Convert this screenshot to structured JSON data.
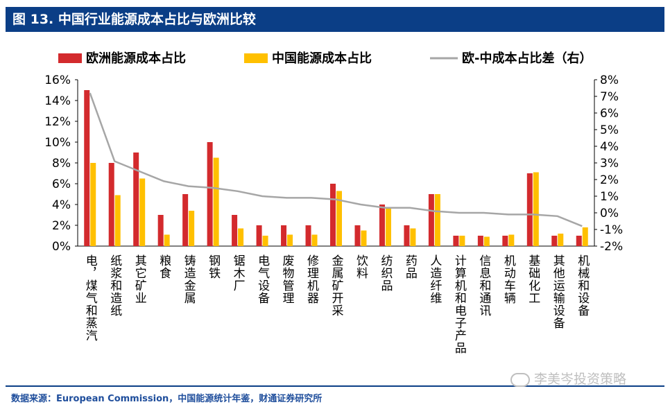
{
  "header": {
    "title": "图 13. 中国行业能源成本占比与欧洲比较"
  },
  "footer": {
    "source": "数据来源：European Commission，中国能源统计年鉴，财通证券研究所"
  },
  "watermark": {
    "text": "李美岑投资策略",
    "icon": "wechat-icon"
  },
  "colors": {
    "eu": "#d32a2d",
    "cn": "#ffc000",
    "diff": "#a6a6a6",
    "brand": "#0b3e86"
  },
  "chart_data": {
    "type": "bar",
    "title": "图 13. 中国行业能源成本占比与欧洲比较",
    "categories": [
      "电，煤气和蒸汽",
      "纸浆和造纸",
      "其它矿业",
      "粮食",
      "铸造金属",
      "钢铁",
      "锯木厂",
      "电气设备",
      "废物管理",
      "修理机器",
      "金属矿开采",
      "饮料",
      "纺织品",
      "药品",
      "人造纤维",
      "计算机和电子产品",
      "信息和通讯",
      "机动车辆",
      "基础化工",
      "其他运输设备",
      "机械和设备"
    ],
    "series": [
      {
        "name": "欧洲能源成本占比",
        "axis": "left",
        "kind": "bar",
        "values": [
          15,
          8,
          9,
          3,
          5,
          10,
          3,
          2,
          2,
          2,
          6,
          2,
          4,
          2,
          5,
          1,
          1,
          1,
          7,
          1,
          1
        ]
      },
      {
        "name": "中国能源成本占比",
        "axis": "left",
        "kind": "bar",
        "values": [
          8,
          4.9,
          6.5,
          1.1,
          3.4,
          8.5,
          1.7,
          1.0,
          1.1,
          1.1,
          5.3,
          1.5,
          3.6,
          1.7,
          5.0,
          1.0,
          0.9,
          1.1,
          7.1,
          1.2,
          1.8
        ]
      },
      {
        "name": "欧-中成本占比差（右）",
        "axis": "right",
        "kind": "line",
        "values": [
          7.2,
          3.1,
          2.5,
          1.9,
          1.6,
          1.5,
          1.3,
          1.0,
          0.9,
          0.9,
          0.8,
          0.5,
          0.3,
          0.3,
          0.1,
          0.0,
          0.0,
          -0.1,
          -0.1,
          -0.2,
          -0.8
        ]
      }
    ],
    "y_left": {
      "min": 0,
      "max": 16,
      "step": 2,
      "ticks": [
        "0%",
        "2%",
        "4%",
        "6%",
        "8%",
        "10%",
        "12%",
        "14%",
        "16%"
      ]
    },
    "y_right": {
      "min": -2,
      "max": 8,
      "step": 1,
      "ticks": [
        "-2%",
        "-1%",
        "0%",
        "1%",
        "2%",
        "3%",
        "4%",
        "5%",
        "6%",
        "7%",
        "8%"
      ]
    },
    "legend_position": "top",
    "grid": false
  }
}
